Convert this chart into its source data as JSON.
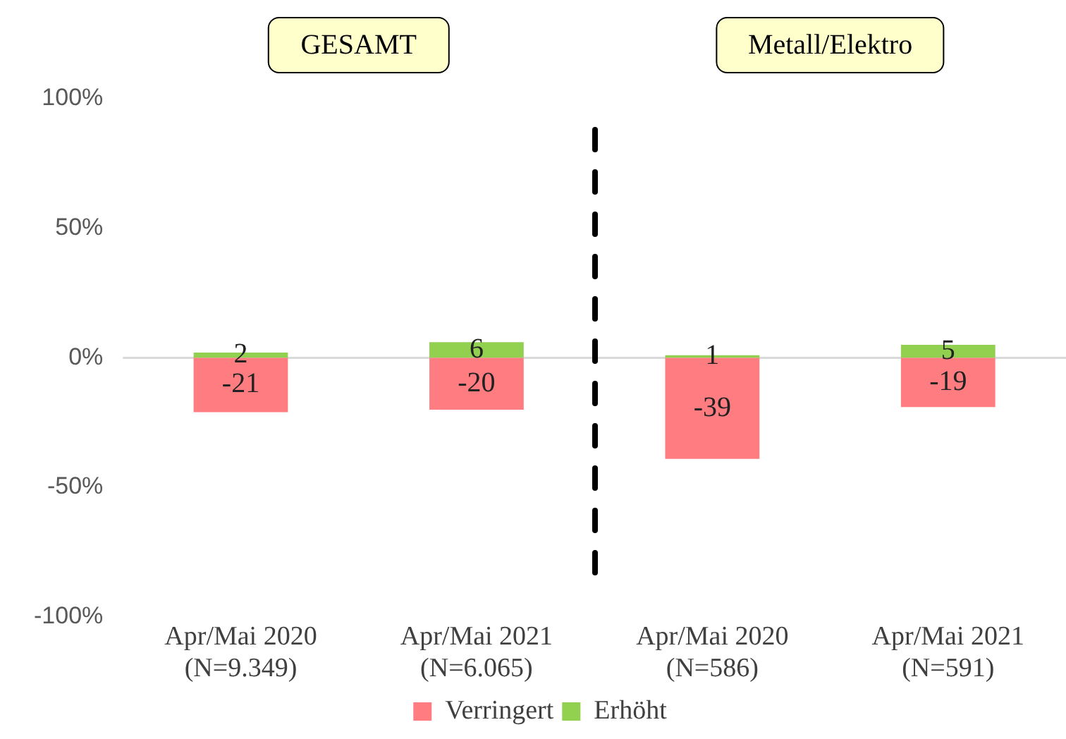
{
  "chart_data": {
    "type": "bar",
    "stacked": true,
    "categories": [
      "Apr/Mai 2020\n(N=9.349)",
      "Apr/Mai 2021\n(N=6.065)",
      "Apr/Mai 2020\n(N=586)",
      "Apr/Mai 2021\n(N=591)"
    ],
    "series": [
      {
        "name": "Verringert",
        "color": "#ff7c80",
        "values": [
          -21,
          -20,
          -39,
          -19
        ]
      },
      {
        "name": "Erhöht",
        "color": "#92d050",
        "values": [
          2,
          6,
          1,
          5
        ]
      }
    ],
    "ylim": [
      -100,
      100
    ],
    "yticks": [
      {
        "value": -100,
        "label": "-100%"
      },
      {
        "value": -50,
        "label": "-50%"
      },
      {
        "value": 0,
        "label": "0%"
      },
      {
        "value": 50,
        "label": "50%"
      },
      {
        "value": 100,
        "label": "100%"
      }
    ],
    "grid": false,
    "ref_lines": [
      {
        "axis": "y",
        "value": 0,
        "color": "#d9d9d9"
      }
    ],
    "legend": "bottom",
    "data_labels": true,
    "annotations": [
      "GESAMT",
      "Metall/Elektro"
    ]
  }
}
